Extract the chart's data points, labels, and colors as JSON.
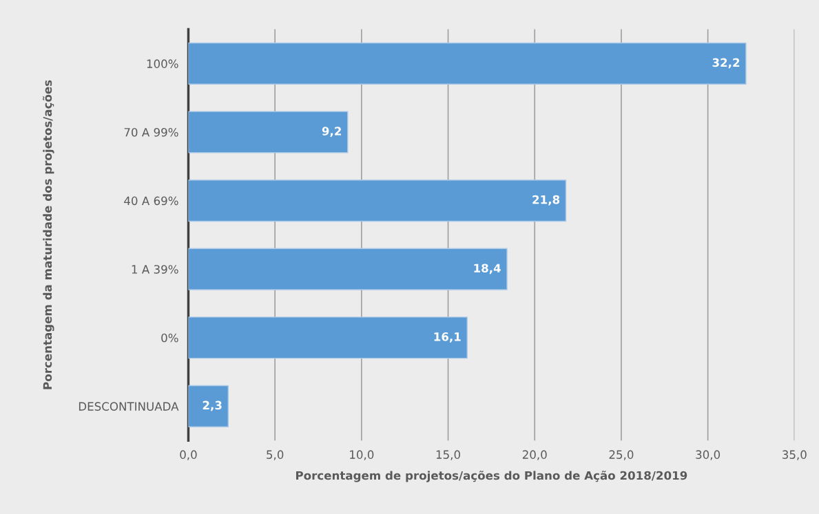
{
  "chart_data": {
    "type": "bar",
    "orientation": "horizontal",
    "categories": [
      "100%",
      "70 A 99%",
      "40 A 69%",
      "1 A 39%",
      "0%",
      "DESCONTINUADA"
    ],
    "values": [
      32.2,
      9.2,
      21.8,
      18.4,
      16.1,
      2.3
    ],
    "value_labels": [
      "32,2",
      "9,2",
      "21,8",
      "18,4",
      "16,1",
      "2,3"
    ],
    "color": "#5b9bd5",
    "xlim": [
      0,
      35
    ],
    "xticks": [
      {
        "value": 0,
        "label": "0,0"
      },
      {
        "value": 5,
        "label": "5,0"
      },
      {
        "value": 10,
        "label": "10,0"
      },
      {
        "value": 15,
        "label": "15,0"
      },
      {
        "value": 20,
        "label": "20,0"
      },
      {
        "value": 25,
        "label": "25,0"
      },
      {
        "value": 30,
        "label": "30,0"
      },
      {
        "value": 35,
        "label": "35,0"
      }
    ],
    "xlabel": "Porcentagem de projetos/ações do Plano de Ação 2018/2019",
    "ylabel": "Porcentagem da maturidade dos projetos/ações",
    "grid": "x"
  }
}
